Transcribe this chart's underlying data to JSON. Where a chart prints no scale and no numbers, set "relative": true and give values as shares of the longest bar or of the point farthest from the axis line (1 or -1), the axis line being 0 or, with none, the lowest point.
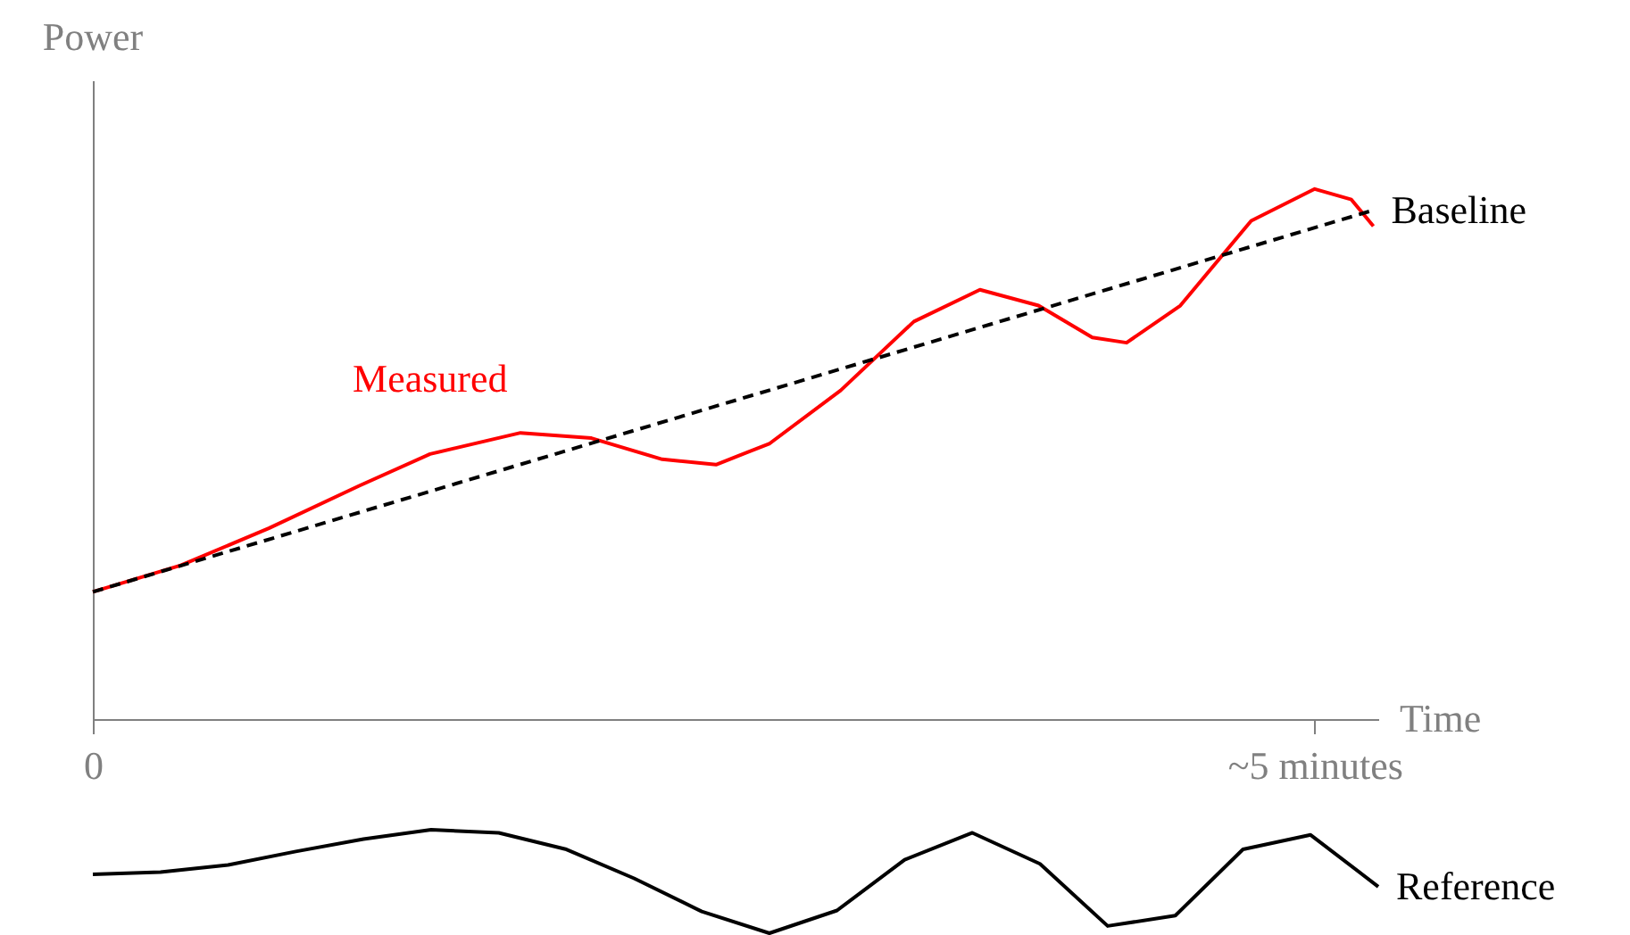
{
  "chart_data": [
    {
      "type": "line",
      "xlabel": "Time",
      "ylabel": "Power",
      "relative": true,
      "xlim": [
        0,
        5.26
      ],
      "xticks": [
        0,
        {
          "value": 5,
          "label": "~5 minutes"
        }
      ],
      "legend": false,
      "series": [
        {
          "name": "Measured",
          "color": "#ff0000",
          "line_style": "solid",
          "x": [
            0,
            0.36,
            0.72,
            1.09,
            1.38,
            1.75,
            2.04,
            2.33,
            2.55,
            2.77,
            3.06,
            3.36,
            3.63,
            3.87,
            4.09,
            4.23,
            4.45,
            4.74,
            5.0,
            5.15,
            5.24
          ],
          "values": [
            0.24,
            0.29,
            0.36,
            0.44,
            0.5,
            0.54,
            0.53,
            0.49,
            0.48,
            0.52,
            0.62,
            0.75,
            0.81,
            0.78,
            0.72,
            0.71,
            0.78,
            0.94,
            1.0,
            0.98,
            0.93
          ]
        },
        {
          "name": "Baseline",
          "color": "#000000",
          "line_style": "dashed",
          "x": [
            0,
            5.24
          ],
          "values": [
            0.24,
            0.96
          ]
        }
      ]
    },
    {
      "type": "line",
      "relative": true,
      "categories": [
        null,
        null,
        null,
        null,
        null,
        null,
        null,
        null,
        null,
        null,
        null,
        null,
        null,
        null,
        null,
        null,
        null,
        null,
        null,
        null
      ],
      "legend": false,
      "series": [
        {
          "name": "Reference",
          "color": "#000000",
          "line_style": "solid",
          "values": [
            0.57,
            0.59,
            0.66,
            0.79,
            0.91,
            1.0,
            0.97,
            0.81,
            0.53,
            0.21,
            0,
            0.22,
            0.71,
            0.97,
            0.67,
            0.07,
            0.17,
            0.81,
            0.95,
            0.45
          ]
        }
      ]
    }
  ]
}
